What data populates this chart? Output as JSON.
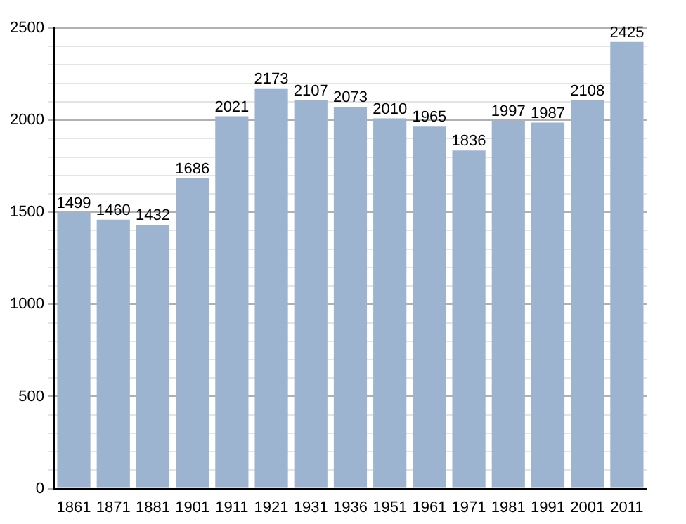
{
  "chart_data": {
    "type": "bar",
    "categories": [
      "1861",
      "1871",
      "1881",
      "1901",
      "1911",
      "1921",
      "1931",
      "1936",
      "1951",
      "1961",
      "1971",
      "1981",
      "1991",
      "2001",
      "2011"
    ],
    "values": [
      1499,
      1460,
      1432,
      1686,
      2021,
      2173,
      2107,
      2073,
      2010,
      1965,
      1836,
      1997,
      1987,
      2108,
      2425
    ],
    "color": "#9db4d0",
    "ylim": [
      0,
      2500
    ],
    "yticks": [
      0,
      {
        "value": 100,
        "label": null
      },
      {
        "value": 200,
        "label": null
      },
      {
        "value": 300,
        "label": null
      },
      {
        "value": 400,
        "label": null
      },
      500,
      {
        "value": 600,
        "label": null
      },
      {
        "value": 700,
        "label": null
      },
      {
        "value": 800,
        "label": null
      },
      {
        "value": 900,
        "label": null
      },
      1000,
      {
        "value": 1100,
        "label": null
      },
      {
        "value": 1200,
        "label": null
      },
      {
        "value": 1300,
        "label": null
      },
      {
        "value": 1400,
        "label": null
      },
      1500,
      {
        "value": 1600,
        "label": null
      },
      {
        "value": 1700,
        "label": null
      },
      {
        "value": 1800,
        "label": null
      },
      {
        "value": 1900,
        "label": null
      },
      2000,
      {
        "value": 2100,
        "label": null
      },
      {
        "value": 2200,
        "label": null
      },
      {
        "value": 2300,
        "label": null
      },
      {
        "value": 2400,
        "label": null
      },
      2500
    ],
    "grid": "y",
    "data_labels": true
  }
}
